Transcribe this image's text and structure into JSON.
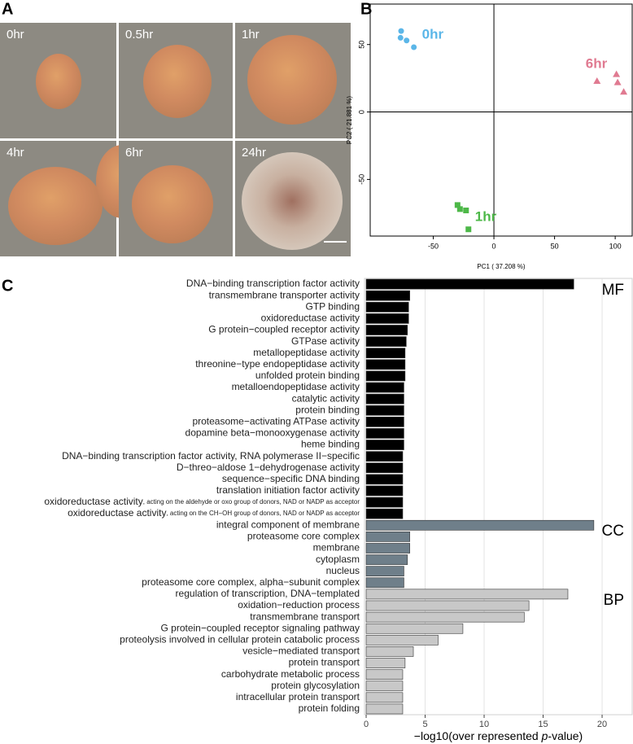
{
  "photos": {
    "panel": "A",
    "captions": [
      "0hr",
      "0.5hr",
      "1hr",
      "4hr",
      "6hr",
      "24hr"
    ]
  },
  "chart_data": [
    {
      "type": "scatter",
      "panel": "B",
      "xlabel": "PC1 ( 37.208 %)",
      "ylabel": "PC2 ( 21.881 %)",
      "xlim": [
        -102,
        114
      ],
      "ylim": [
        -92,
        80
      ],
      "xticks": [
        -50,
        0,
        50,
        100
      ],
      "yticks": [
        -50,
        0,
        50
      ],
      "zero_lines": true,
      "series": [
        {
          "name": "0hr",
          "color": "#5bb6e8",
          "marker": "circle",
          "x": [
            -76.5,
            -77,
            -72,
            -66
          ],
          "y": [
            60,
            55,
            53,
            48
          ]
        },
        {
          "name": "6hr",
          "color": "#e07a91",
          "marker": "triangle",
          "x": [
            85,
            101,
            102,
            107
          ],
          "y": [
            23,
            28,
            22,
            15
          ]
        },
        {
          "name": "1hr",
          "color": "#4db848",
          "marker": "square",
          "x": [
            -30,
            -28,
            -23,
            -21
          ],
          "y": [
            -69,
            -72,
            -73,
            -87
          ]
        }
      ]
    },
    {
      "type": "hbar",
      "panel": "C",
      "xlabel": [
        "−log10(over represented ",
        "p",
        "-value)"
      ],
      "xlim": [
        -0.14,
        22.55
      ],
      "xticks": [
        0,
        5,
        10,
        15,
        20
      ],
      "grid": true,
      "series": [
        {
          "name": "MF",
          "color": "#000000",
          "categories": [
            "DNA−binding transcription factor activity",
            "transmembrane transporter activity",
            "GTP binding",
            "oxidoreductase activity",
            "G protein−coupled receptor activity",
            "GTPase activity",
            "metallopeptidase activity",
            "threonine−type endopeptidase activity",
            "unfolded protein binding",
            "metalloendopeptidase activity",
            "catalytic activity",
            "protein binding",
            "proteasome−activating ATPase activity",
            "dopamine beta−monooxygenase activity",
            "heme binding",
            "DNA−binding transcription factor activity, RNA polymerase II−specific",
            "D−threo−aldose 1−dehydrogenase activity",
            "sequence−specific DNA binding",
            "translation initiation factor activity",
            [
              "oxidoreductase activity",
              ", acting on the aldehyde or oxo group of donors, NAD or NADP as acceptor"
            ],
            [
              "oxidoreductase activity",
              ", acting on the CH−OH group of donors, NAD or NADP as acceptor"
            ]
          ],
          "values": [
            17.6,
            3.7,
            3.6,
            3.6,
            3.5,
            3.4,
            3.3,
            3.3,
            3.3,
            3.2,
            3.2,
            3.2,
            3.2,
            3.2,
            3.2,
            3.1,
            3.1,
            3.1,
            3.1,
            3.1,
            3.1
          ]
        },
        {
          "name": "CC",
          "color": "#6f7f8a",
          "categories": [
            "integral component of membrane",
            "proteasome core complex",
            "membrane",
            "cytoplasm",
            "nucleus",
            "proteasome core complex, alpha−subunit complex"
          ],
          "values": [
            19.3,
            3.7,
            3.7,
            3.5,
            3.2,
            3.2
          ]
        },
        {
          "name": "BP",
          "color": "#c8c8c8",
          "categories": [
            "regulation of transcription, DNA−templated",
            "oxidation−reduction process",
            "transmembrane transport",
            "G protein−coupled receptor signaling pathway",
            "proteolysis involved in cellular protein catabolic process",
            "vesicle−mediated transport",
            "protein transport",
            "carbohydrate metabolic process",
            "protein glycosylation",
            "intracellular protein transport",
            "protein folding"
          ],
          "values": [
            17.1,
            13.8,
            13.4,
            8.2,
            6.1,
            4.0,
            3.3,
            3.1,
            3.1,
            3.1,
            3.1
          ]
        }
      ]
    }
  ]
}
